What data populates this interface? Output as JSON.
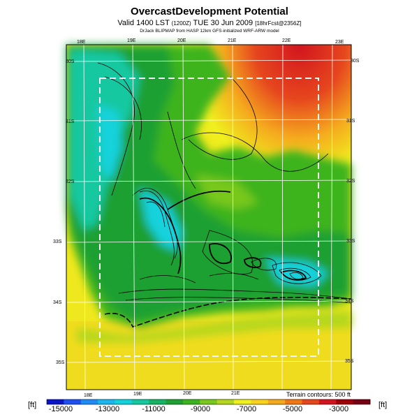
{
  "title": "OvercastDevelopment Potential",
  "subtitle": {
    "valid": "Valid 1400 LST",
    "valid_small": "(1200Z)",
    "date": "TUE 30 Jun 2009",
    "forecast": "[18hrFcst@2356Z]"
  },
  "credits": "DrJack BLIPMAP from HASP 12km GFS-initialized WRF-ARW model",
  "map": {
    "lon_labels": [
      "18E",
      "19E",
      "20E",
      "21E",
      "22E",
      "23E"
    ],
    "lat_labels": [
      "30S",
      "31S",
      "32S",
      "33S",
      "34S",
      "35S"
    ],
    "terrain_note": "Terrain contours: 500 ft"
  },
  "colorbar": {
    "unit": "[ft]",
    "range": [
      -15000,
      -2000
    ],
    "tick_values": [
      "-15000",
      "-13000",
      "-11000",
      "-9000",
      "-7000",
      "-5000",
      "-3000"
    ],
    "colors": [
      "#0a14c8",
      "#1f4ff0",
      "#1f8cf5",
      "#1ab6f0",
      "#14d2dc",
      "#14c8a0",
      "#14b464",
      "#1ea032",
      "#3cb41e",
      "#78c81e",
      "#b4d71e",
      "#f0f01e",
      "#fad21e",
      "#f5aa1e",
      "#f07814",
      "#e6461e",
      "#d2141e",
      "#a0000a",
      "#780014"
    ]
  }
}
